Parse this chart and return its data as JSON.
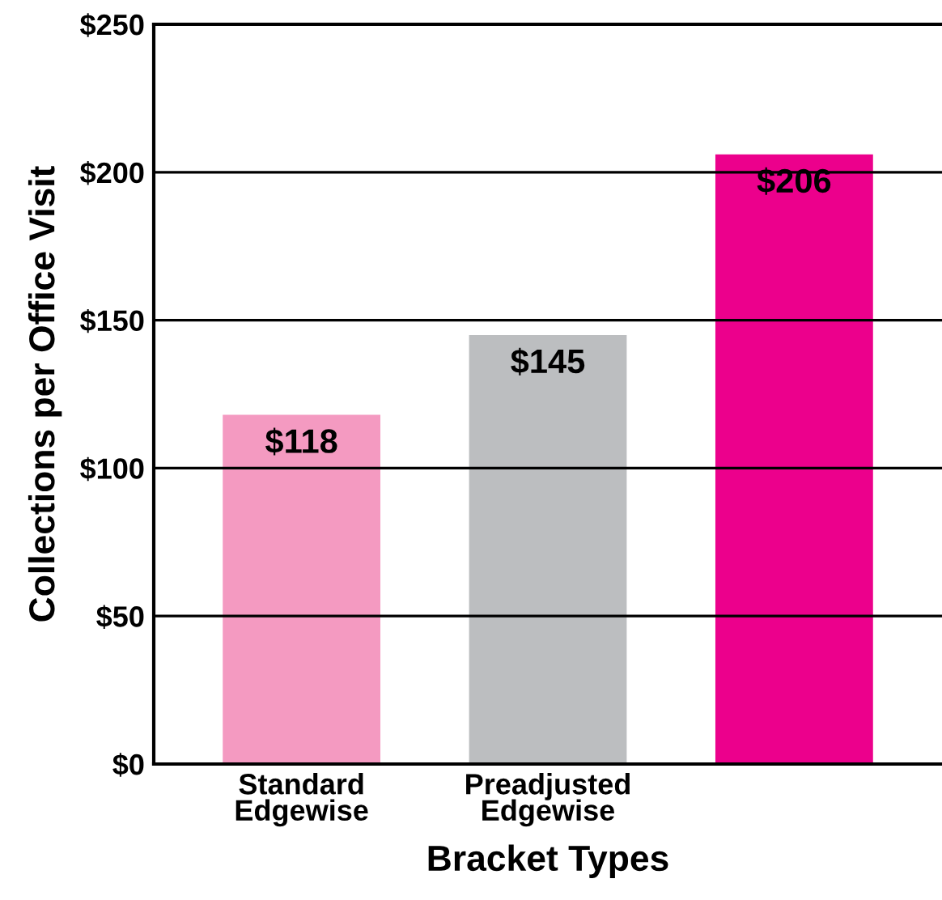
{
  "chart_data": {
    "type": "bar",
    "xlabel": "Bracket Types",
    "ylabel": "Collections per Office Visit",
    "categories": [
      "Standard\nEdgewise",
      "Preadjusted\nEdgewise",
      null
    ],
    "values": [
      118,
      145,
      206
    ],
    "colors": [
      "#f49ac1",
      "#bcbec0",
      "#ec008c"
    ],
    "value_labels": [
      "$118",
      "$145",
      "$206"
    ],
    "ylim": [
      0,
      250
    ],
    "yticks": [
      {
        "value": 0,
        "label": "$0"
      },
      {
        "value": 50,
        "label": "$50"
      },
      {
        "value": 100,
        "label": "$100"
      },
      {
        "value": 150,
        "label": "$150"
      },
      {
        "value": 200,
        "label": "$200"
      },
      {
        "value": 250,
        "label": "$250"
      }
    ],
    "grid": "y",
    "legend": false
  }
}
